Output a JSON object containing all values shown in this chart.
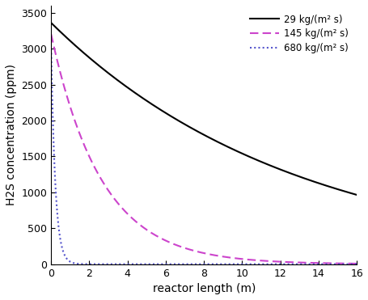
{
  "title": "",
  "xlabel": "reactor length (m)",
  "ylabel": "H2S concentration (ppm)",
  "xlim": [
    0,
    16
  ],
  "ylim": [
    0,
    3600
  ],
  "xticks": [
    0,
    2,
    4,
    6,
    8,
    10,
    12,
    14,
    16
  ],
  "yticks": [
    0,
    500,
    1000,
    1500,
    2000,
    2500,
    3000,
    3500
  ],
  "series": [
    {
      "label": "29 kg/(m² s)",
      "color": "#000000",
      "linestyle": "solid",
      "linewidth": 1.5,
      "k": 0.078,
      "y0": 3360
    },
    {
      "label": "145 kg/(m² s)",
      "color": "#cc44cc",
      "linestyle": "dashed",
      "linewidth": 1.5,
      "k": 0.38,
      "y0": 3200
    },
    {
      "label": "680 kg/(m² s)",
      "color": "#5555cc",
      "linestyle": "dotted",
      "linewidth": 1.5,
      "k": 4.5,
      "y0": 3000
    }
  ],
  "legend_loc": "upper right",
  "legend_fontsize": 8.5,
  "background_color": "#ffffff",
  "figsize": [
    4.56,
    3.71
  ],
  "dpi": 100
}
